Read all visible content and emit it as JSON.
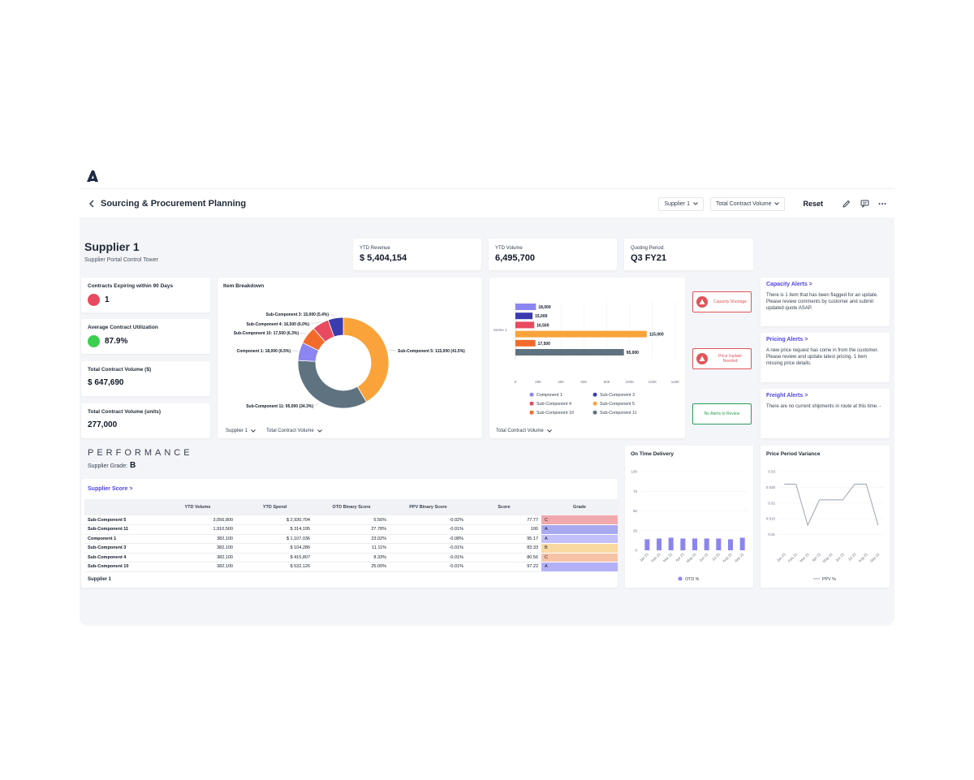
{
  "header": {
    "title": "Sourcing & Procurement Planning",
    "supplier_select": "Supplier 1",
    "metric_select": "Total Contract Volume",
    "reset_label": "Reset"
  },
  "supplier": {
    "name": "Supplier 1",
    "subtitle": "Supplier Portal Control Tower"
  },
  "kpis": [
    {
      "label": "YTD Revenue",
      "value": "$ 5,404,154"
    },
    {
      "label": "YTD Volume",
      "value": "6,495,700"
    },
    {
      "label": "Quoting Period:",
      "value": "Q3 FY21"
    }
  ],
  "metrics": [
    {
      "label": "Contracts Expiring within 90 Days",
      "value": "1",
      "dot_color": "#e84a5f"
    },
    {
      "label": "Average Contract Utilization",
      "value": "87.9%",
      "dot_color": "#3ccf4e"
    },
    {
      "label": "Total Contract Volume ($)",
      "value": "$ 647,690"
    },
    {
      "label": "Total Contract Volume (units)",
      "value": "277,000"
    }
  ],
  "item_breakdown": {
    "title": "Item Breakdown",
    "filter1": "Supplier 1",
    "filter2": "Total Contract Volume"
  },
  "bar_panel": {
    "filter": "Total Contract Volume",
    "axis_series_label": "Series 1"
  },
  "status_buttons": [
    {
      "label": "Capacity Shortage",
      "state": "alert"
    },
    {
      "label": "Price Update Needed",
      "state": "alert"
    },
    {
      "label": "No Alerts to Review",
      "state": "ok"
    }
  ],
  "alerts": [
    {
      "title": "Capacity Alerts >",
      "body": "There is 1 item that has been flagged for an update.  Please review comments by customer and submit updated quote ASAP."
    },
    {
      "title": "Pricing Alerts >",
      "body": "A new price request has come in from the customer.  Please review and update latest pricing. 1 item missing price details."
    },
    {
      "title": "Freight Alerts >",
      "body": "There are no current shipments in route at this time. -"
    }
  ],
  "performance": {
    "heading": "PERFORMANCE",
    "grade_label": "Supplier Grade:",
    "grade_value": "B",
    "score_link": "Supplier Score >",
    "footer": "Supplier 1",
    "sort_icon": "arrow-down-icon",
    "columns": [
      "",
      "YTD Volume",
      "YTD Spend",
      "OTD Binary Score",
      "PPV Binary Score",
      "Score",
      "Grade"
    ],
    "rows": [
      {
        "name": "Sub-Component 5",
        "volume": "3,056,800",
        "spend": "$ 2,930,704",
        "otd": "5.56%",
        "ppv": "-0.02%",
        "score": "77.77",
        "grade": "C",
        "color": "#f2a9ad"
      },
      {
        "name": "Sub-Component 11",
        "volume": "1,910,500",
        "spend": "$ 314,195",
        "otd": "27.78%",
        "ppv": "-0.01%",
        "score": "100",
        "grade": "A",
        "color": "#a9a9f0"
      },
      {
        "name": "Component 1",
        "volume": "382,100",
        "spend": "$ 1,107,036",
        "otd": "23.02%",
        "ppv": "-0.08%",
        "score": "95.17",
        "grade": "A",
        "color": "#c4c0fb"
      },
      {
        "name": "Sub-Component 3",
        "volume": "382,100",
        "spend": "$ 104,286",
        "otd": "11.11%",
        "ppv": "-0.01%",
        "score": "83.33",
        "grade": "B",
        "color": "#fad8a1"
      },
      {
        "name": "Sub-Component 4",
        "volume": "382,100",
        "spend": "$ 415,807",
        "otd": "8.33%",
        "ppv": "-0.01%",
        "score": "80.56",
        "grade": "C",
        "color": "#f7c3a6"
      },
      {
        "name": "Sub-Component 10",
        "volume": "382,100",
        "spend": "$ 532,126",
        "otd": "25.00%",
        "ppv": "-0.01%",
        "score": "97.22",
        "grade": "A",
        "color": "#b4b1f7"
      }
    ]
  },
  "colors": {
    "component1": "#8b85f0",
    "subcomponent3": "#3b3bb0",
    "subcomponent4": "#e84a5f",
    "subcomponent5": "#f9a33a",
    "subcomponent10": "#f26b2a",
    "subcomponent11": "#5f7280",
    "alert_red": "#e0545a",
    "ok_green": "#2d9b59",
    "link_blue": "#4f46e5"
  },
  "chart_data": [
    {
      "type": "pie",
      "variant": "donut",
      "title": "Item Breakdown",
      "slices": [
        {
          "label": "Sub-Component 5: 115,000 (41.5%)",
          "value": 115000,
          "color": "#f9a33a"
        },
        {
          "label": "Sub-Component 11: 95,000 (34.3%)",
          "value": 95000,
          "color": "#5f7280"
        },
        {
          "label": "Component 1: 18,000 (6.5%)",
          "value": 18000,
          "color": "#8b85f0"
        },
        {
          "label": "Sub-Component 10: 17,500 (6.3%)",
          "value": 17500,
          "color": "#f26b2a"
        },
        {
          "label": "Sub-Component 4: 16,500 (6.0%)",
          "value": 16500,
          "color": "#e84a5f"
        },
        {
          "label": "Sub-Component 3: 15,000 (5.4%)",
          "value": 15000,
          "color": "#3b3bb0"
        }
      ]
    },
    {
      "type": "bar",
      "orientation": "horizontal",
      "categories": [
        "Series 1"
      ],
      "series": [
        {
          "name": "Component 1",
          "value": 18000,
          "label": "18,000",
          "color": "#8b85f0"
        },
        {
          "name": "Sub-Component 3",
          "value": 15000,
          "label": "15,000",
          "color": "#3b3bb0"
        },
        {
          "name": "Sub-Component 4",
          "value": 16500,
          "label": "16,500",
          "color": "#e84a5f"
        },
        {
          "name": "Sub-Component 5",
          "value": 115000,
          "label": "115,000",
          "color": "#f9a33a"
        },
        {
          "name": "Sub-Component 10",
          "value": 17500,
          "label": "17,500",
          "color": "#f26b2a"
        },
        {
          "name": "Sub-Component 11",
          "value": 95000,
          "label": "95,000",
          "color": "#5f7280"
        }
      ],
      "xlim": [
        0,
        140000
      ],
      "xticks": [
        "0",
        "20K",
        "40K",
        "60K",
        "80K",
        "100K",
        "120K",
        "140K"
      ],
      "legend": "bottom"
    },
    {
      "type": "bar",
      "title": "On Time Delivery",
      "categories": [
        "Jan 21",
        "Feb 21",
        "Mar 21",
        "Apr 21",
        "May 21",
        "Jun 21",
        "Jul 21",
        "Aug 21",
        "Sep 21"
      ],
      "series": [
        {
          "name": "OTD %",
          "values": [
            14,
            15,
            16,
            15,
            15,
            15,
            15,
            14,
            16
          ]
        }
      ],
      "ylim": [
        0,
        100
      ],
      "yticks": [
        "0",
        "25",
        "50",
        "75",
        "100"
      ],
      "color": "#8b85f0",
      "legend": "bottom"
    },
    {
      "type": "line",
      "title": "Price Period Variance",
      "categories": [
        "Jan 21",
        "Feb 21",
        "Mar 21",
        "Apr 21",
        "May 21",
        "Jun 21",
        "Jul 21",
        "Aug 21",
        "Sep 21"
      ],
      "series": [
        {
          "name": "PPV %",
          "values": [
            0.026,
            0.026,
            0.013,
            0.021,
            0.021,
            0.021,
            0.026,
            0.026,
            0.013
          ]
        }
      ],
      "ylim": [
        0.005,
        0.03
      ],
      "yticks": [
        "0.03",
        "0.025",
        "0.02",
        "0.015",
        "0.01"
      ],
      "color": "#9ca3af",
      "legend": "bottom"
    }
  ]
}
